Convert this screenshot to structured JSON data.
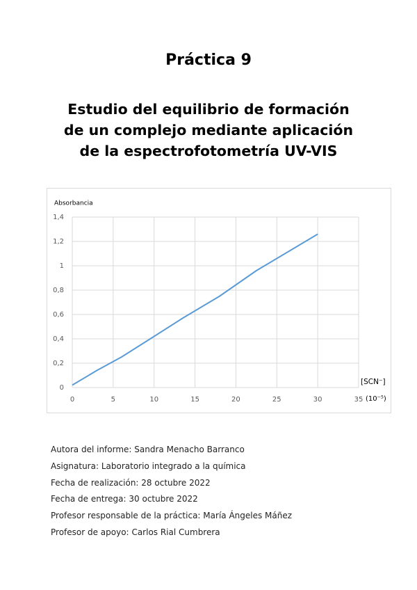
{
  "title": "Práctica 9",
  "subtitle_lines": [
    "Estudio del equilibrio de formación",
    "de un complejo mediante aplicación",
    "de la espectrofotometría UV-VIS"
  ],
  "chart_data": {
    "type": "line",
    "y_label": "Absorbancia",
    "x_label": "[SCN⁻]",
    "x_unit": "(10⁻⁵)",
    "x": [
      0,
      3,
      6,
      10,
      13.5,
      18,
      22.5,
      30
    ],
    "values": [
      0.02,
      0.14,
      0.25,
      0.42,
      0.57,
      0.75,
      0.96,
      1.26
    ],
    "color": "#5b9bd5",
    "xlim": [
      0,
      35
    ],
    "xticks": [
      0,
      5,
      10,
      15,
      20,
      25,
      30,
      35
    ],
    "ylim": [
      0,
      1.4
    ],
    "yticks": [
      0,
      {
        "value": 0.2,
        "label": "0,2"
      },
      {
        "value": 0.4,
        "label": "0,4"
      },
      {
        "value": 0.6,
        "label": "0,6"
      },
      {
        "value": 0.8,
        "label": "0,8"
      },
      1,
      {
        "value": 1.2,
        "label": "1,2"
      },
      {
        "value": 1.4,
        "label": "1,4"
      }
    ],
    "grid": true
  },
  "info": [
    {
      "label": "Autora del informe:",
      "value": "Sandra Menacho Barranco"
    },
    {
      "label": "Asignatura:",
      "value": "Laboratorio integrado a la química"
    },
    {
      "label": "Fecha de realización:",
      "value": "28 octubre 2022"
    },
    {
      "label": "Fecha de entrega:",
      "value": "30 octubre 2022"
    },
    {
      "label": "Profesor responsable de la práctica:",
      "value": "María Ángeles Máñez"
    },
    {
      "label": "Profesor de apoyo:",
      "value": "Carlos Rial Cumbrera"
    }
  ]
}
